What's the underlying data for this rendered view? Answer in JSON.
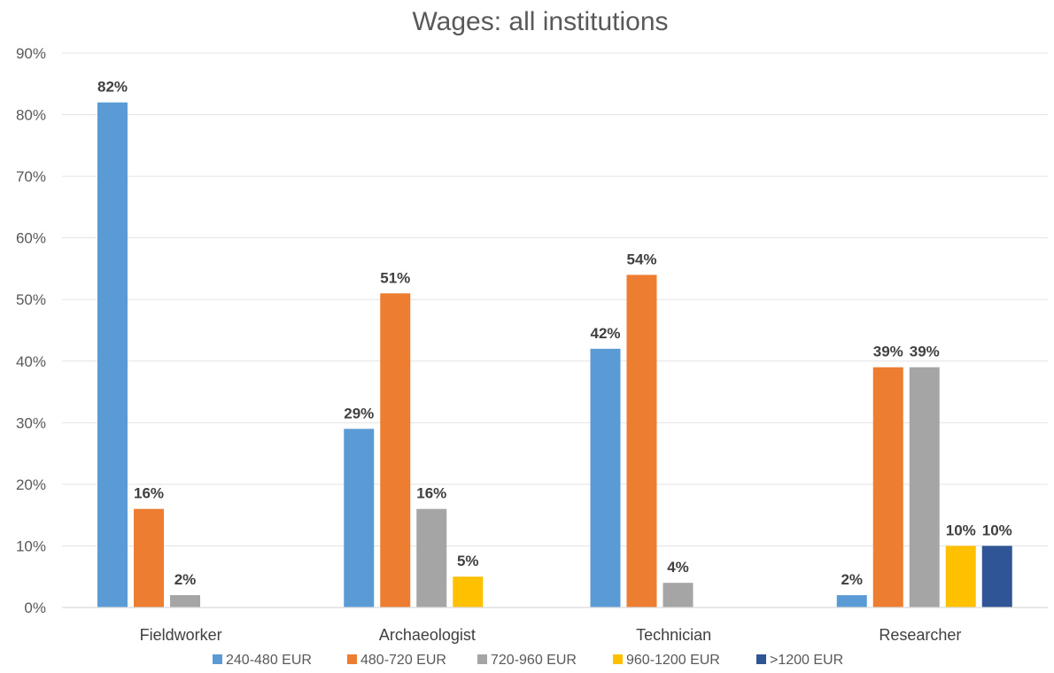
{
  "chart_data": {
    "type": "bar",
    "title": "Wages: all institutions",
    "xlabel": "",
    "ylabel": "",
    "categories": [
      "Fieldworker",
      "Archaeologist",
      "Technician",
      "Researcher"
    ],
    "ylim": [
      0,
      90
    ],
    "yticks": [
      0,
      10,
      20,
      30,
      40,
      50,
      60,
      70,
      80,
      90
    ],
    "ytick_labels": [
      "0%",
      "10%",
      "20%",
      "30%",
      "40%",
      "50%",
      "60%",
      "70%",
      "80%",
      "90%"
    ],
    "unit_suffix": "%",
    "grid": true,
    "legend_position": "bottom",
    "series": [
      {
        "name": "240-480 EUR",
        "color": "#5b9bd5",
        "values": [
          82,
          29,
          42,
          2
        ]
      },
      {
        "name": "480-720 EUR",
        "color": "#ed7d31",
        "values": [
          16,
          51,
          54,
          39
        ]
      },
      {
        "name": "720-960 EUR",
        "color": "#a5a5a5",
        "values": [
          2,
          16,
          4,
          39
        ]
      },
      {
        "name": "960-1200 EUR",
        "color": "#ffc000",
        "values": [
          null,
          5,
          null,
          10
        ]
      },
      {
        "name": ">1200 EUR",
        "color": "#2f5597",
        "values": [
          null,
          null,
          null,
          10
        ]
      }
    ]
  }
}
